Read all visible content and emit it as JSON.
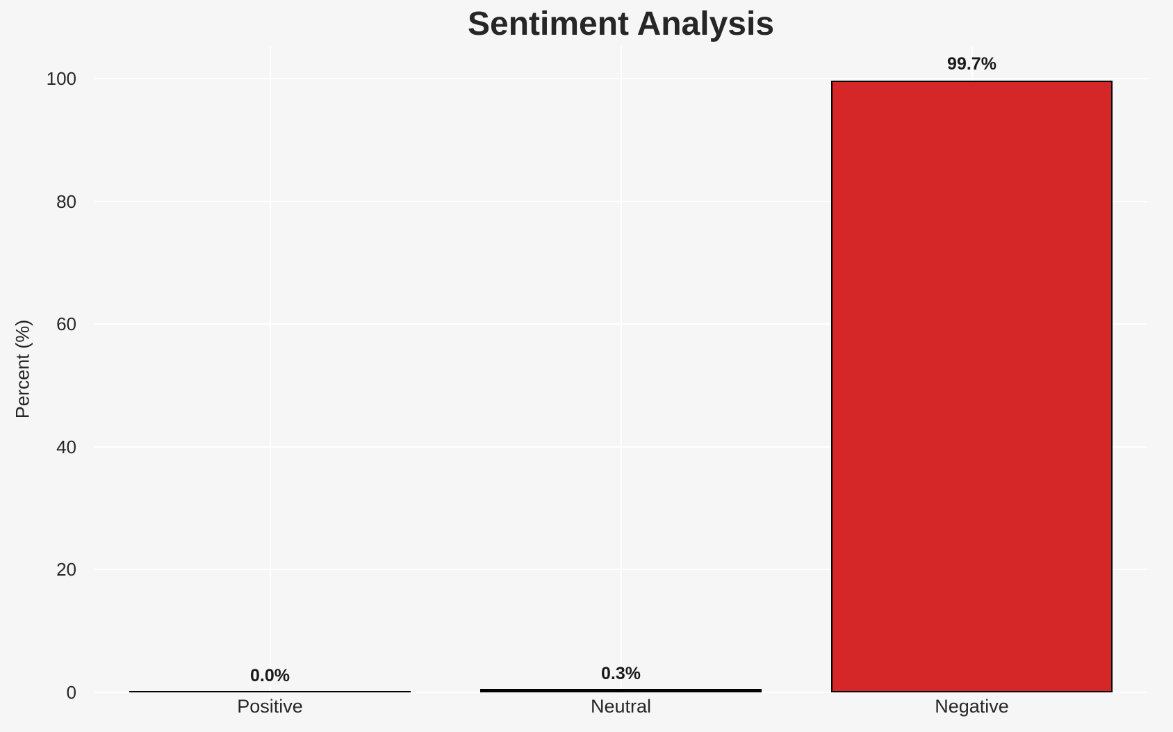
{
  "chart_data": {
    "type": "bar",
    "title": "Sentiment Analysis",
    "xlabel": "",
    "ylabel": "Percent (%)",
    "categories": [
      "Positive",
      "Neutral",
      "Negative"
    ],
    "values": [
      0.0,
      0.3,
      99.7
    ],
    "value_labels": [
      "0.0%",
      "0.3%",
      "99.7%"
    ],
    "yticks": [
      0,
      20,
      40,
      60,
      80,
      100
    ],
    "ylim": [
      0,
      105.2
    ],
    "grid": "on",
    "legend": "none",
    "colors": {
      "bar_fill_negative": "#d62728",
      "bar_edge": "#000000",
      "background": "#f6f6f7",
      "gridline": "#ffffff",
      "text": "#262626"
    }
  }
}
